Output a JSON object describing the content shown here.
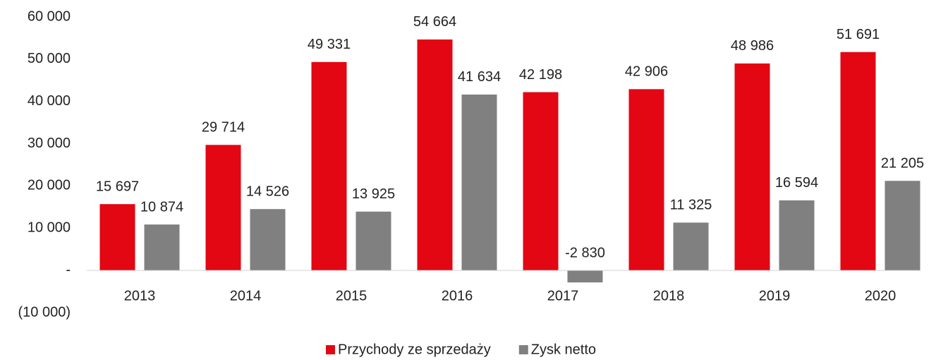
{
  "chart_data": {
    "type": "bar",
    "categories": [
      "2013",
      "2014",
      "2015",
      "2016",
      "2017",
      "2018",
      "2019",
      "2020"
    ],
    "series": [
      {
        "name": "Przychody ze sprzedaży",
        "color": "#e30613",
        "values": [
          15697,
          29714,
          49331,
          54664,
          42198,
          42906,
          48986,
          51691
        ],
        "value_labels": [
          "15 697",
          "29 714",
          "49 331",
          "54 664",
          "42 198",
          "42 906",
          "48 986",
          "51 691"
        ]
      },
      {
        "name": "Zysk netto",
        "color": "#808080",
        "values": [
          10874,
          14526,
          13925,
          41634,
          -2830,
          11325,
          16594,
          21205
        ],
        "value_labels": [
          "10 874",
          "14 526",
          "13 925",
          "41 634",
          "-2 830",
          "11 325",
          "16 594",
          "21 205"
        ]
      }
    ],
    "ylim": [
      -10000,
      60000
    ],
    "yticks": [
      {
        "value": -10000,
        "label": "(10 000)"
      },
      {
        "value": 0,
        "label": "-"
      },
      {
        "value": 10000,
        "label": "10 000"
      },
      {
        "value": 20000,
        "label": "20 000"
      },
      {
        "value": 30000,
        "label": "30 000"
      },
      {
        "value": 40000,
        "label": "40 000"
      },
      {
        "value": 50000,
        "label": "50 000"
      },
      {
        "value": 60000,
        "label": "60 000"
      }
    ],
    "grid": false,
    "legend": "bottom"
  }
}
